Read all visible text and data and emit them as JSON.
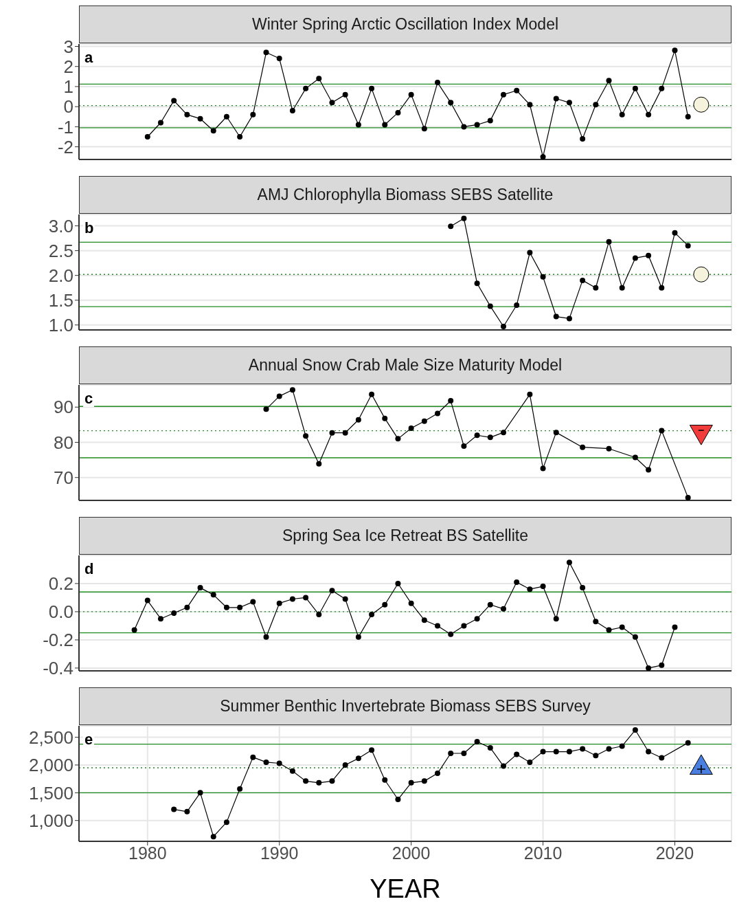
{
  "chart_data": [
    {
      "type": "line",
      "title": "Winter Spring Arctic Oscillation Index Model",
      "annotations": [
        "a"
      ],
      "xlim": [
        1974.8,
        2024.3
      ],
      "xticks": [
        1980,
        1990,
        2000,
        2010,
        2020
      ],
      "ylim": [
        -2.63,
        3.12
      ],
      "yticks": [
        -2,
        -1,
        0,
        1,
        2,
        3
      ],
      "grid": true,
      "tick_labels": "y",
      "marker": "circle",
      "series": [
        {
          "color": "#000000",
          "x": [
            1980,
            1981,
            1982,
            1983,
            1984,
            1985,
            1986,
            1987,
            1988,
            1989,
            1990,
            1991,
            1992,
            1993,
            1994,
            1995,
            1996,
            1997,
            1998,
            1999,
            2000,
            2001,
            2002,
            2003,
            2004,
            2005,
            2006,
            2007,
            2008,
            2009,
            2010,
            2011,
            2012,
            2013,
            2014,
            2015,
            2016,
            2017,
            2018,
            2019,
            2020,
            2021
          ],
          "values": [
            -1.5,
            -0.8,
            0.3,
            -0.4,
            -0.6,
            -1.2,
            -0.5,
            -1.5,
            -0.4,
            2.7,
            2.4,
            -0.2,
            0.9,
            1.4,
            0.2,
            0.6,
            -0.9,
            0.9,
            -0.9,
            -0.3,
            0.6,
            -1.1,
            1.2,
            0.2,
            -1.0,
            -0.9,
            -0.7,
            0.6,
            0.8,
            0.1,
            -2.5,
            0.4,
            0.2,
            -1.6,
            0.1,
            1.3,
            -0.4,
            0.9,
            -0.4,
            0.9,
            2.8,
            -0.5
          ]
        },
        {
          "type": "scatter",
          "marker": "circle",
          "color": "#f5f3dc",
          "x": [
            2022
          ],
          "values": [
            0.1
          ]
        }
      ],
      "ref_lines": [
        {
          "axis": "y",
          "value": 1.12,
          "color": "#1f8a1f",
          "line_style": "solid"
        },
        {
          "axis": "y",
          "value": -1.05,
          "color": "#1f8a1f",
          "line_style": "solid"
        },
        {
          "axis": "y",
          "value": 0.05,
          "color": "#1f8a1f",
          "line_style": "dotted"
        }
      ]
    },
    {
      "type": "line",
      "title": "AMJ Chlorophylla Biomass SEBS Satellite",
      "annotations": [
        "b"
      ],
      "xlim": [
        1974.8,
        2024.3
      ],
      "xticks": [
        1980,
        1990,
        2000,
        2010,
        2020
      ],
      "ylim": [
        0.9,
        3.23
      ],
      "yticks": [
        {
          "value": 1,
          "label": "1.0"
        },
        {
          "value": 1.5,
          "label": "1.5"
        },
        {
          "value": 2,
          "label": "2.0"
        },
        {
          "value": 2.5,
          "label": "2.5"
        },
        {
          "value": 3,
          "label": "3.0"
        }
      ],
      "grid": true,
      "tick_labels": "y",
      "marker": "circle",
      "series": [
        {
          "color": "#000000",
          "x": [
            2003,
            2004,
            2005,
            2006,
            2007,
            2008,
            2009,
            2010,
            2011,
            2012,
            2013,
            2014,
            2015,
            2016,
            2017,
            2018,
            2019,
            2020,
            2021
          ],
          "values": [
            2.99,
            3.15,
            1.84,
            1.38,
            0.97,
            1.4,
            2.46,
            1.97,
            1.17,
            1.13,
            1.9,
            1.75,
            2.68,
            1.75,
            2.35,
            2.4,
            1.75,
            2.86,
            2.6
          ]
        },
        {
          "type": "scatter",
          "marker": "circle",
          "color": "#f5f3dc",
          "x": [
            2022
          ],
          "values": [
            2.02
          ]
        }
      ],
      "ref_lines": [
        {
          "axis": "y",
          "value": 2.67,
          "color": "#1f8a1f",
          "line_style": "solid"
        },
        {
          "axis": "y",
          "value": 1.37,
          "color": "#1f8a1f",
          "line_style": "solid"
        },
        {
          "axis": "y",
          "value": 2.02,
          "color": "#1f8a1f",
          "line_style": "dotted"
        }
      ]
    },
    {
      "type": "line",
      "title": "Annual Snow Crab Male Size Maturity Model",
      "annotations": [
        "c"
      ],
      "xlim": [
        1974.8,
        2024.3
      ],
      "xticks": [
        1980,
        1990,
        2000,
        2010,
        2020
      ],
      "ylim": [
        63.5,
        96.3
      ],
      "yticks": [
        70,
        80,
        90
      ],
      "grid": true,
      "tick_labels": "y",
      "marker": "circle",
      "series": [
        {
          "color": "#000000",
          "x": [
            1989,
            1990,
            1991,
            1992,
            1993,
            1994,
            1995,
            1996,
            1997,
            1998,
            1999,
            2000,
            2001,
            2002,
            2003,
            2004,
            2005,
            2006,
            2007,
            2009,
            2010,
            2011,
            2013,
            2015,
            2017,
            2018,
            2019,
            2021
          ],
          "values": [
            89.4,
            93.1,
            94.9,
            81.8,
            73.9,
            82.7,
            82.7,
            86.4,
            93.6,
            86.8,
            81.0,
            84.0,
            86.0,
            88.2,
            91.8,
            78.9,
            82.0,
            81.4,
            82.8,
            93.6,
            72.6,
            82.8,
            78.6,
            78.2,
            75.7,
            72.2,
            83.3,
            64.3
          ]
        },
        {
          "type": "scatter",
          "marker": "triangle",
          "color": "#f23b3b",
          "x": [
            2022
          ],
          "values": [
            83
          ]
        }
      ],
      "ref_lines": [
        {
          "axis": "y",
          "value": 90.2,
          "color": "#1f8a1f",
          "line_style": "solid"
        },
        {
          "axis": "y",
          "value": 75.6,
          "color": "#1f8a1f",
          "line_style": "solid"
        },
        {
          "axis": "y",
          "value": 83.3,
          "color": "#1f8a1f",
          "line_style": "dotted"
        }
      ]
    },
    {
      "type": "line",
      "title": "Spring Sea Ice Retreat BS Satellite",
      "annotations": [
        "d"
      ],
      "xlim": [
        1974.8,
        2024.3
      ],
      "xticks": [
        1980,
        1990,
        2000,
        2010,
        2020
      ],
      "ylim": [
        -0.42,
        0.4
      ],
      "yticks": [
        {
          "value": -0.4,
          "label": "-0.4"
        },
        {
          "value": -0.2,
          "label": "-0.2"
        },
        {
          "value": 0,
          "label": "0.0"
        },
        {
          "value": 0.2,
          "label": "0.2"
        }
      ],
      "grid": true,
      "tick_labels": "y",
      "marker": "circle",
      "series": [
        {
          "color": "#000000",
          "x": [
            1979,
            1980,
            1981,
            1982,
            1983,
            1984,
            1985,
            1986,
            1987,
            1988,
            1989,
            1990,
            1991,
            1992,
            1993,
            1994,
            1995,
            1996,
            1997,
            1998,
            1999,
            2000,
            2001,
            2002,
            2003,
            2004,
            2005,
            2006,
            2007,
            2008,
            2009,
            2010,
            2011,
            2012,
            2013,
            2014,
            2015,
            2016,
            2017,
            2018,
            2019,
            2020
          ],
          "values": [
            -0.13,
            0.08,
            -0.05,
            -0.01,
            0.03,
            0.17,
            0.12,
            0.03,
            0.03,
            0.07,
            -0.18,
            0.06,
            0.09,
            0.1,
            -0.02,
            0.15,
            0.09,
            -0.18,
            -0.02,
            0.05,
            0.2,
            0.06,
            -0.06,
            -0.1,
            -0.16,
            -0.1,
            -0.05,
            0.05,
            0.02,
            0.21,
            0.16,
            0.18,
            -0.05,
            0.35,
            0.17,
            -0.07,
            -0.13,
            -0.11,
            -0.18,
            -0.4,
            -0.38,
            -0.11
          ]
        }
      ],
      "ref_lines": [
        {
          "axis": "y",
          "value": 0.14,
          "color": "#1f8a1f",
          "line_style": "solid"
        },
        {
          "axis": "y",
          "value": -0.15,
          "color": "#1f8a1f",
          "line_style": "solid"
        },
        {
          "axis": "y",
          "value": 0,
          "color": "#1f8a1f",
          "line_style": "dotted"
        }
      ]
    },
    {
      "type": "line",
      "title": "Summer Benthic Invertebrate Biomass SEBS Survey",
      "annotations": [
        "e"
      ],
      "xlabel": "YEAR",
      "xlim": [
        1974.8,
        2024.3
      ],
      "xticks": [
        1980,
        1990,
        2000,
        2010,
        2020
      ],
      "ylim": [
        625,
        2705
      ],
      "yticks": [
        {
          "value": 1000,
          "label": "1,000"
        },
        {
          "value": 1500,
          "label": "1,500"
        },
        {
          "value": 2000,
          "label": "2,000"
        },
        {
          "value": 2500,
          "label": "2,500"
        }
      ],
      "grid": true,
      "marker": "circle",
      "series": [
        {
          "color": "#000000",
          "x": [
            1982,
            1983,
            1984,
            1985,
            1986,
            1987,
            1988,
            1989,
            1990,
            1991,
            1992,
            1993,
            1994,
            1995,
            1996,
            1997,
            1998,
            1999,
            2000,
            2001,
            2002,
            2003,
            2004,
            2005,
            2006,
            2007,
            2008,
            2009,
            2010,
            2011,
            2012,
            2013,
            2014,
            2015,
            2016,
            2017,
            2018,
            2019,
            2021
          ],
          "values": [
            1200,
            1160,
            1500,
            710,
            970,
            1570,
            2140,
            2050,
            2030,
            1890,
            1710,
            1680,
            1710,
            2000,
            2120,
            2270,
            1730,
            1380,
            1680,
            1710,
            1850,
            2210,
            2210,
            2420,
            2310,
            1980,
            2190,
            2050,
            2240,
            2240,
            2240,
            2290,
            2170,
            2290,
            2340,
            2630,
            2240,
            2130,
            2400
          ]
        },
        {
          "type": "scatter",
          "marker": "triangle",
          "color": "#4a7fe0",
          "x": [
            2022
          ],
          "values": [
            1950
          ]
        }
      ],
      "ref_lines": [
        {
          "axis": "y",
          "value": 2375,
          "color": "#1f8a1f",
          "line_style": "solid"
        },
        {
          "axis": "y",
          "value": 1500,
          "color": "#1f8a1f",
          "line_style": "solid"
        },
        {
          "axis": "y",
          "value": 1950,
          "color": "#1f8a1f",
          "line_style": "dotted"
        }
      ]
    }
  ]
}
